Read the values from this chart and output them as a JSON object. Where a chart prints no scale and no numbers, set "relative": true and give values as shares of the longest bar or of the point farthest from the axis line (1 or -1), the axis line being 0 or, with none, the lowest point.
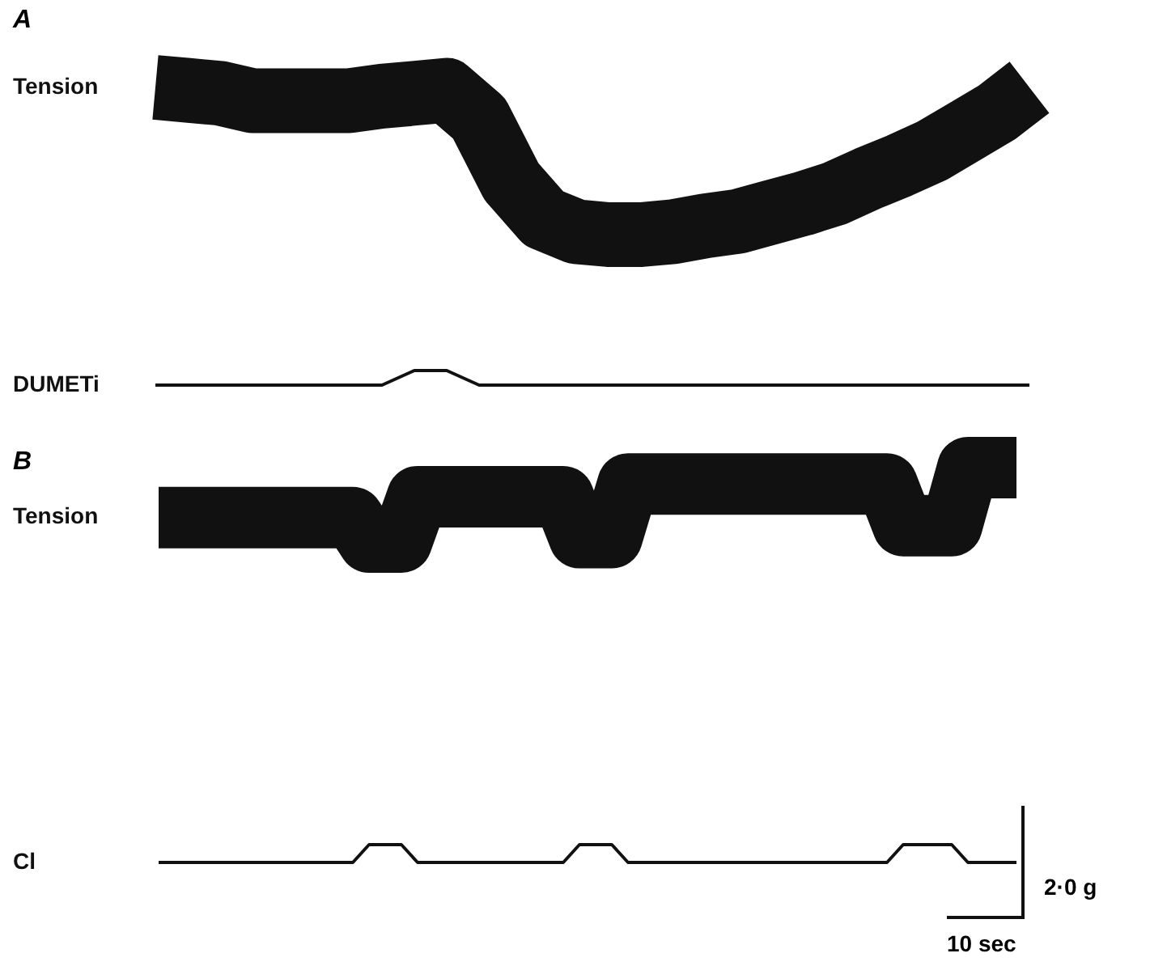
{
  "chart_data": [
    {
      "type": "line",
      "title": "A",
      "relative": true,
      "categories": [
        null,
        null,
        null,
        null,
        null,
        null,
        null,
        null,
        null,
        null,
        null,
        null,
        null,
        null,
        null,
        null,
        null,
        null,
        null,
        null,
        null,
        null,
        null,
        null,
        null,
        null,
        null,
        null
      ],
      "series": [
        {
          "name": "Tension",
          "color": "#111111",
          "values": [
            1,
            0.98,
            0.96,
            0.91,
            0.91,
            0.91,
            0.91,
            0.94,
            0.96,
            0.98,
            0.79,
            0.36,
            0.11,
            0.02,
            0,
            0,
            0.02,
            0.06,
            0.09,
            0.15,
            0.21,
            0.28,
            0.38,
            0.47,
            0.57,
            0.7,
            0.83,
            1
          ]
        }
      ]
    },
    {
      "type": "line",
      "relative": true,
      "categories": [
        null,
        null,
        null,
        null,
        null,
        null,
        null,
        null,
        null,
        null,
        null,
        null,
        null,
        null,
        null,
        null,
        null,
        null,
        null,
        null,
        null,
        null,
        null,
        null,
        null,
        null,
        null,
        null
      ],
      "series": [
        {
          "name": "DUMETi",
          "color": "#111111",
          "values": [
            0,
            0,
            0,
            0,
            0,
            0,
            0,
            0,
            1,
            1,
            0,
            0,
            0,
            0,
            0,
            0,
            0,
            0,
            0,
            0,
            0,
            0,
            0,
            0,
            0,
            0,
            0,
            0
          ]
        }
      ]
    },
    {
      "type": "line",
      "title": "B",
      "relative": true,
      "categories": [
        null,
        null,
        null,
        null,
        null,
        null,
        null,
        null,
        null,
        null,
        null,
        null,
        null,
        null,
        null,
        null,
        null,
        null,
        null,
        null,
        null,
        null,
        null,
        null,
        null,
        null,
        null,
        null,
        null,
        null,
        null,
        null,
        null,
        null,
        null,
        null,
        null,
        null,
        null,
        null,
        null,
        null,
        null,
        null,
        null,
        null,
        null,
        null,
        null,
        null,
        null,
        null,
        null,
        null
      ],
      "series": [
        {
          "name": "Tension",
          "color": "#111111",
          "values": [
            0.33,
            0.33,
            0.33,
            0.33,
            0.33,
            0.33,
            0.33,
            0.33,
            0.33,
            0.33,
            0.33,
            0.33,
            0.33,
            0,
            0,
            0,
            0.61,
            0.61,
            0.61,
            0.61,
            0.61,
            0.61,
            0.61,
            0.61,
            0.61,
            0.61,
            0.06,
            0.06,
            0.06,
            0.78,
            0.78,
            0.78,
            0.78,
            0.78,
            0.78,
            0.78,
            0.78,
            0.78,
            0.78,
            0.78,
            0.78,
            0.78,
            0.78,
            0.78,
            0.78,
            0.78,
            0.22,
            0.22,
            0.22,
            0.22,
            1,
            1,
            1,
            1
          ]
        }
      ]
    },
    {
      "type": "line",
      "relative": true,
      "categories": [
        null,
        null,
        null,
        null,
        null,
        null,
        null,
        null,
        null,
        null,
        null,
        null,
        null,
        null,
        null,
        null,
        null,
        null,
        null,
        null,
        null,
        null,
        null,
        null,
        null,
        null,
        null,
        null,
        null,
        null,
        null,
        null,
        null,
        null,
        null,
        null,
        null,
        null,
        null,
        null,
        null,
        null,
        null,
        null,
        null,
        null,
        null,
        null,
        null,
        null,
        null,
        null,
        null,
        null
      ],
      "series": [
        {
          "name": "Cl",
          "color": "#111111",
          "values": [
            0,
            0,
            0,
            0,
            0,
            0,
            0,
            0,
            0,
            0,
            0,
            0,
            0,
            1,
            1,
            1,
            0,
            0,
            0,
            0,
            0,
            0,
            0,
            0,
            0,
            0,
            1,
            1,
            1,
            0,
            0,
            0,
            0,
            0,
            0,
            0,
            0,
            0,
            0,
            0,
            0,
            0,
            0,
            0,
            0,
            0,
            1,
            1,
            1,
            1,
            0,
            0,
            0,
            0
          ]
        }
      ],
      "annotations": [
        "2·0 g",
        "10 sec"
      ]
    }
  ]
}
